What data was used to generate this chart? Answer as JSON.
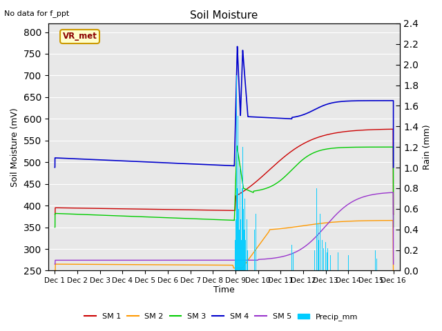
{
  "title": "Soil Moisture",
  "subtitle": "No data for f_ppt",
  "ylabel_left": "Soil Moisture (mV)",
  "ylabel_right": "Rain (mm)",
  "xlabel": "Time",
  "station_label": "VR_met",
  "ylim_left": [
    250,
    820
  ],
  "ylim_right": [
    0.0,
    2.4
  ],
  "yticks_left": [
    250,
    300,
    350,
    400,
    450,
    500,
    550,
    600,
    650,
    700,
    750,
    800
  ],
  "yticks_right": [
    0.0,
    0.2,
    0.4,
    0.6,
    0.8,
    1.0,
    1.2,
    1.4,
    1.6,
    1.8,
    2.0,
    2.2,
    2.4
  ],
  "xtick_labels": [
    "Dec 1",
    "Dec 2",
    "Dec 3",
    "Dec 4",
    "Dec 5",
    "Dec 6",
    "Dec 7",
    "Dec 8",
    "Dec 9",
    "Dec 10",
    "Dec 11",
    "Dec 12",
    "Dec 13",
    "Dec 14",
    "Dec 15",
    "Dec 16"
  ],
  "colors": {
    "SM1": "#cc0000",
    "SM2": "#ff9900",
    "SM3": "#00cc00",
    "SM4": "#0000cc",
    "SM5": "#9933cc",
    "Precip": "#00ccff"
  },
  "background_color": "#e8e8e8",
  "grid_color": "#ffffff",
  "figsize": [
    6.4,
    4.8
  ],
  "dpi": 100
}
